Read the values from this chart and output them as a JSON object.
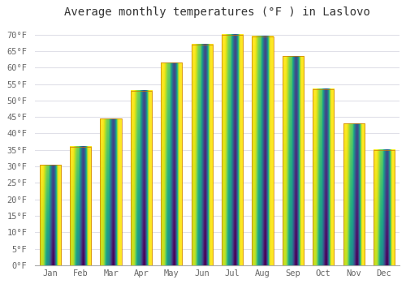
{
  "title": "Average monthly temperatures (°F ) in Laslovo",
  "months": [
    "Jan",
    "Feb",
    "Mar",
    "Apr",
    "May",
    "Jun",
    "Jul",
    "Aug",
    "Sep",
    "Oct",
    "Nov",
    "Dec"
  ],
  "values": [
    30.5,
    36.0,
    44.5,
    53.0,
    61.5,
    67.0,
    70.0,
    69.5,
    63.5,
    53.5,
    43.0,
    35.0
  ],
  "bar_color_bottom": "#E8820A",
  "bar_color_top": "#FFCC44",
  "ylim": [
    0,
    73
  ],
  "yticks": [
    0,
    5,
    10,
    15,
    20,
    25,
    30,
    35,
    40,
    45,
    50,
    55,
    60,
    65,
    70
  ],
  "ytick_labels": [
    "0°F",
    "5°F",
    "10°F",
    "15°F",
    "20°F",
    "25°F",
    "30°F",
    "35°F",
    "40°F",
    "45°F",
    "50°F",
    "55°F",
    "60°F",
    "65°F",
    "70°F"
  ],
  "background_color": "#FFFFFF",
  "plot_bg_color": "#FFFFFF",
  "grid_color": "#E0E0E8",
  "title_fontsize": 10,
  "tick_fontsize": 7.5,
  "bar_width": 0.7
}
